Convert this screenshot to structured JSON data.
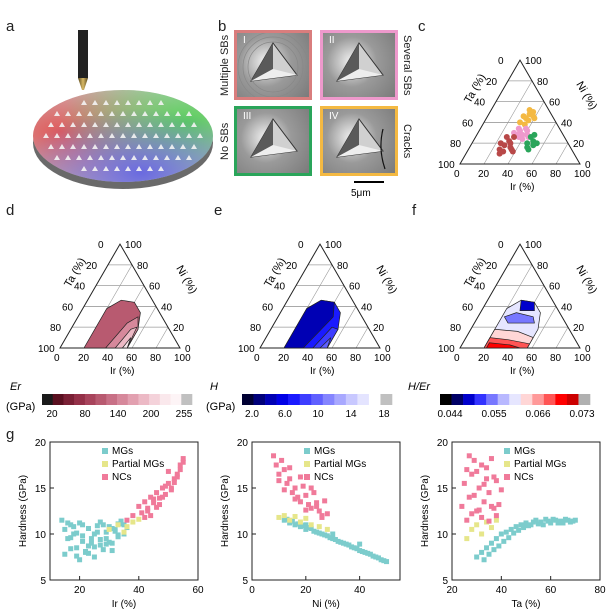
{
  "panels": {
    "a": "a",
    "b": "b",
    "c": "c",
    "d": "d",
    "e": "e",
    "f": "f",
    "g": "g"
  },
  "panel_b": {
    "tiles": [
      {
        "roman": "I",
        "side": "Multiple SBs",
        "border": "#d97d7d"
      },
      {
        "roman": "II",
        "side": "Several SBs",
        "border": "#ee99cc"
      },
      {
        "roman": "III",
        "side": "No SBs",
        "border": "#2aa55a"
      },
      {
        "roman": "IV",
        "side": "Cracks",
        "border": "#f4b942"
      }
    ],
    "scale_bar": "5μm"
  },
  "ternary": {
    "ticks": [
      "0",
      "20",
      "40",
      "60",
      "80",
      "100"
    ],
    "axis_left": "Ta (%)",
    "axis_right": "Ni (%)",
    "axis_bottom": "Ir (%)"
  },
  "colorbars": {
    "d": {
      "label_top": "Er",
      "label_bottom": "(GPa)",
      "ticks": [
        "20",
        "80",
        "140",
        "200",
        "255"
      ],
      "colors": [
        "#1a1a1a",
        "#5a1020",
        "#7a2035",
        "#943048",
        "#a8445c",
        "#b85a70",
        "#c87086",
        "#d6889b",
        "#e2a0b0",
        "#ecb9c5",
        "#f4d2da",
        "#fae8ec",
        "#fdf4f6",
        "#c0c0c0"
      ]
    },
    "e": {
      "label_top": "H",
      "label_bottom": "(GPa)",
      "ticks": [
        "2.0",
        "6.0",
        "10",
        "14",
        "18"
      ],
      "colors": [
        "#000033",
        "#00007a",
        "#0000b4",
        "#0000e6",
        "#1a1aff",
        "#3d3dff",
        "#6060ff",
        "#8585ff",
        "#a8a8ff",
        "#c8c8ff",
        "#e4e4ff",
        "#ffffff",
        "#c0c0c0"
      ]
    },
    "f": {
      "label_top": "H/Er",
      "ticks": [
        "0.044",
        "0.055",
        "0.066",
        "0.073"
      ],
      "colors": [
        "#000000",
        "#000066",
        "#0000cc",
        "#3333ff",
        "#7777ff",
        "#b8b8ff",
        "#e6e6ff",
        "#ffd6d6",
        "#ff9999",
        "#ff5555",
        "#ff0000",
        "#cc0000",
        "#b0b0b0"
      ]
    }
  },
  "chart_data": [
    {
      "type": "scatter",
      "xlabel": "Ir (%)",
      "ylabel": "Hardness (GPa)",
      "xlim": [
        10,
        60
      ],
      "ylim": [
        5,
        20
      ],
      "xticks": [
        20,
        40,
        60
      ],
      "yticks": [
        5,
        10,
        15,
        20
      ],
      "legend": [
        "MGs",
        "Partial MGs",
        "NCs"
      ],
      "series": [
        {
          "name": "MGs",
          "color": "#7ccccc",
          "x": [
            14,
            15,
            16,
            17,
            18,
            19,
            20,
            21,
            22,
            23,
            24,
            25,
            26,
            27,
            28,
            29,
            30,
            31,
            32,
            33,
            34,
            15,
            17,
            19,
            21,
            23,
            25,
            27,
            29,
            31,
            33,
            35,
            16,
            18,
            20,
            22,
            24,
            26,
            28,
            30,
            32,
            34,
            36,
            17,
            19,
            21,
            23,
            25,
            27,
            29,
            31,
            33,
            35
          ],
          "y": [
            11.5,
            10.5,
            9.5,
            11.0,
            10.0,
            8.5,
            11.2,
            9.8,
            8.0,
            10.6,
            9.0,
            7.5,
            10.2,
            8.8,
            11.0,
            9.5,
            10.8,
            8.2,
            10.5,
            9.7,
            11.1,
            7.8,
            8.4,
            7.6,
            9.2,
            8.7,
            10.0,
            9.4,
            8.9,
            10.6,
            9.9,
            11.0,
            11.2,
            10.8,
            7.2,
            8.1,
            9.5,
            10.9,
            8.3,
            9.1,
            10.3,
            11.4,
            10.7,
            9.6,
            10.1,
            11.0,
            7.9,
            8.6,
            11.3,
            10.2,
            9.0,
            11.1,
            10.0
          ]
        },
        {
          "name": "Partial MGs",
          "color": "#e6e68a",
          "x": [
            30,
            33,
            35,
            38,
            40,
            36
          ],
          "y": [
            10.5,
            11.0,
            10.2,
            11.3,
            11.6,
            10.8
          ]
        },
        {
          "name": "NCs",
          "color": "#f07a9a",
          "x": [
            36,
            38,
            40,
            41,
            42,
            43,
            44,
            45,
            46,
            47,
            48,
            49,
            50,
            51,
            52,
            53,
            54,
            55,
            46,
            48,
            50,
            52,
            54,
            44,
            42,
            49,
            51,
            53,
            55,
            47,
            45,
            43
          ],
          "y": [
            11.5,
            12.0,
            13.0,
            12.3,
            13.5,
            12.8,
            14.0,
            13.4,
            14.5,
            13.9,
            15.0,
            14.3,
            15.5,
            15.0,
            16.0,
            16.5,
            17.5,
            18.2,
            12.9,
            14.0,
            16.8,
            15.6,
            17.0,
            12.0,
            11.8,
            15.2,
            14.8,
            16.2,
            17.8,
            13.2,
            13.8,
            12.5
          ]
        }
      ]
    },
    {
      "type": "scatter",
      "xlabel": "Ni (%)",
      "ylabel": "Hardness (GPa)",
      "xlim": [
        0,
        55
      ],
      "ylim": [
        5,
        20
      ],
      "xticks": [
        0,
        20,
        40
      ],
      "yticks": [
        5,
        10,
        15,
        20
      ],
      "legend": [
        "MGs",
        "Partial MGs",
        "NCs"
      ],
      "series": [
        {
          "name": "MGs",
          "color": "#7ccccc",
          "x": [
            12,
            14,
            16,
            18,
            20,
            22,
            24,
            26,
            28,
            30,
            32,
            34,
            36,
            38,
            40,
            42,
            44,
            46,
            48,
            50,
            15,
            19,
            23,
            27,
            31,
            35,
            39,
            43,
            47,
            13,
            17,
            21,
            25,
            29,
            33,
            37,
            41,
            45,
            49,
            20,
            30,
            40
          ],
          "y": [
            11.5,
            11.2,
            11.0,
            10.8,
            10.5,
            10.6,
            10.2,
            10.0,
            9.8,
            9.5,
            9.2,
            9.0,
            8.8,
            8.5,
            8.2,
            8.0,
            7.8,
            7.5,
            7.2,
            7.0,
            11.4,
            10.9,
            10.3,
            9.9,
            9.4,
            8.9,
            8.4,
            7.9,
            7.4,
            11.6,
            11.1,
            10.7,
            10.1,
            9.6,
            9.1,
            8.6,
            8.1,
            7.6,
            7.1,
            11.0,
            10.0,
            8.9
          ]
        },
        {
          "name": "Partial MGs",
          "color": "#e6e68a",
          "x": [
            10,
            12,
            14,
            16,
            18,
            20,
            22,
            25,
            28
          ],
          "y": [
            11.8,
            12.0,
            11.5,
            11.9,
            11.3,
            11.7,
            11.0,
            10.8,
            10.5
          ]
        },
        {
          "name": "NCs",
          "color": "#f07a9a",
          "x": [
            8,
            9,
            10,
            11,
            12,
            13,
            14,
            15,
            16,
            17,
            18,
            19,
            20,
            21,
            22,
            23,
            24,
            25,
            26,
            27,
            28,
            10,
            12,
            14,
            16,
            18,
            20,
            22,
            24,
            26
          ],
          "y": [
            18.5,
            17.5,
            16.5,
            18.0,
            17.0,
            15.5,
            16.0,
            14.5,
            15.0,
            14.0,
            13.5,
            15.2,
            14.2,
            13.2,
            12.8,
            14.5,
            13.0,
            12.5,
            12.0,
            13.6,
            12.2,
            15.8,
            14.8,
            17.2,
            13.8,
            16.2,
            12.6,
            15.0,
            13.4,
            11.8
          ]
        }
      ]
    },
    {
      "type": "scatter",
      "xlabel": "Ta (%)",
      "ylabel": "Hardness (GPa)",
      "xlim": [
        20,
        80
      ],
      "ylim": [
        5,
        20
      ],
      "xticks": [
        20,
        40,
        60,
        80
      ],
      "yticks": [
        5,
        10,
        15,
        20
      ],
      "legend": [
        "MGs",
        "Partial MGs",
        "NCs"
      ],
      "series": [
        {
          "name": "MGs",
          "color": "#7ccccc",
          "x": [
            30,
            32,
            34,
            36,
            38,
            40,
            42,
            44,
            46,
            48,
            50,
            52,
            54,
            56,
            58,
            60,
            62,
            64,
            66,
            68,
            70,
            35,
            39,
            43,
            47,
            51,
            55,
            59,
            63,
            67,
            33,
            37,
            41,
            45,
            49,
            53,
            57,
            61,
            65,
            69
          ],
          "y": [
            7.5,
            8.0,
            8.5,
            9.0,
            9.5,
            10.0,
            10.2,
            10.5,
            10.8,
            11.0,
            11.2,
            11.0,
            11.5,
            11.3,
            11.6,
            11.2,
            11.5,
            11.4,
            11.6,
            11.3,
            11.5,
            7.8,
            8.7,
            9.6,
            10.4,
            10.9,
            11.1,
            11.4,
            11.2,
            11.5,
            7.2,
            8.3,
            9.2,
            10.1,
            10.7,
            11.3,
            11.0,
            11.6,
            11.2,
            11.4
          ]
        },
        {
          "name": "Partial MGs",
          "color": "#e6e68a",
          "x": [
            26,
            28,
            30,
            32,
            34,
            36,
            38
          ],
          "y": [
            9.5,
            10.5,
            11.0,
            10.0,
            11.3,
            10.7,
            11.5
          ]
        },
        {
          "name": "NCs",
          "color": "#f07a9a",
          "x": [
            24,
            25,
            26,
            27,
            28,
            29,
            30,
            31,
            32,
            33,
            34,
            35,
            36,
            37,
            38,
            39,
            40,
            26,
            28,
            30,
            32,
            34,
            36,
            38,
            27,
            29,
            31,
            33,
            35,
            37
          ],
          "y": [
            13.0,
            15.5,
            17.0,
            14.0,
            16.5,
            18.0,
            12.5,
            15.0,
            17.5,
            13.5,
            16.0,
            14.5,
            18.2,
            12.8,
            15.8,
            13.2,
            14.8,
            11.5,
            12.2,
            16.8,
            11.8,
            17.2,
            13.0,
            12.0,
            18.5,
            14.2,
            12.6,
            15.4,
            11.4,
            16.2
          ]
        }
      ]
    }
  ]
}
